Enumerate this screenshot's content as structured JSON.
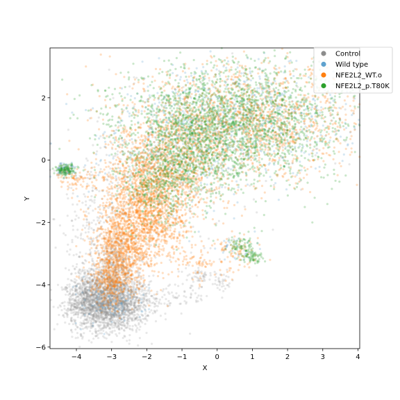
{
  "chart_data": {
    "type": "scatter",
    "title": "",
    "xlabel": "X",
    "ylabel": "Y",
    "xlim": [
      -4.75,
      4.05
    ],
    "ylim": [
      -6.05,
      3.6
    ],
    "xticks": [
      -4,
      -3,
      -2,
      -1,
      0,
      1,
      2,
      3,
      4
    ],
    "yticks": [
      -6,
      -4,
      -2,
      0,
      2
    ],
    "grid": false,
    "legend_position": "top-right",
    "series": [
      {
        "name": "Control",
        "color": "#8c8c8c",
        "opacity": 0.2,
        "clusters": [
          {
            "cx": -3.0,
            "cy": -4.6,
            "sx": 0.55,
            "sy": 0.45,
            "n": 1800
          },
          {
            "cx": -3.6,
            "cy": -4.4,
            "sx": 0.35,
            "sy": 0.5,
            "n": 600
          },
          {
            "cx": -2.9,
            "cy": -3.4,
            "sx": 0.3,
            "sy": 0.5,
            "n": 350
          },
          {
            "cx": -3.5,
            "cy": -2.8,
            "sx": 0.5,
            "sy": 1.2,
            "n": 250
          },
          {
            "cx": -1.2,
            "cy": -4.4,
            "sx": 0.5,
            "sy": 0.2,
            "n": 70
          },
          {
            "cx": -0.5,
            "cy": -3.7,
            "sx": 0.2,
            "sy": 0.1,
            "n": 40
          },
          {
            "cx": 0.1,
            "cy": -3.9,
            "sx": 0.2,
            "sy": 0.15,
            "n": 40
          },
          {
            "cx": -4.4,
            "cy": -0.3,
            "sx": 0.15,
            "sy": 0.1,
            "n": 40
          },
          {
            "cx": -2.0,
            "cy": -1.0,
            "sx": 1.2,
            "sy": 1.3,
            "n": 250
          },
          {
            "cx": 0.5,
            "cy": 1.0,
            "sx": 1.6,
            "sy": 1.0,
            "n": 150
          }
        ]
      },
      {
        "name": "Wild type",
        "color": "#5fa2ce",
        "opacity": 0.25,
        "clusters": [
          {
            "cx": 0.8,
            "cy": 1.3,
            "sx": 1.6,
            "sy": 0.9,
            "n": 600
          },
          {
            "cx": -1.5,
            "cy": 0.2,
            "sx": 1.1,
            "sy": 1.0,
            "n": 250
          },
          {
            "cx": -4.3,
            "cy": -0.3,
            "sx": 0.15,
            "sy": 0.1,
            "n": 60
          },
          {
            "cx": 0.6,
            "cy": -2.9,
            "sx": 0.25,
            "sy": 0.2,
            "n": 30
          },
          {
            "cx": -3.0,
            "cy": -4.5,
            "sx": 0.5,
            "sy": 0.4,
            "n": 120
          }
        ]
      },
      {
        "name": "NFE2L2_WT.o",
        "color": "#ff7f0e",
        "opacity": 0.25,
        "clusters": [
          {
            "cx": -2.0,
            "cy": -1.6,
            "sx": 0.6,
            "sy": 0.9,
            "n": 1500
          },
          {
            "cx": -1.4,
            "cy": -0.1,
            "sx": 0.8,
            "sy": 0.8,
            "n": 800
          },
          {
            "cx": -2.7,
            "cy": -2.8,
            "sx": 0.4,
            "sy": 0.6,
            "n": 700
          },
          {
            "cx": -3.0,
            "cy": -3.9,
            "sx": 0.3,
            "sy": 0.4,
            "n": 350
          },
          {
            "cx": 0.8,
            "cy": 1.2,
            "sx": 1.6,
            "sy": 0.9,
            "n": 1500
          },
          {
            "cx": -4.0,
            "cy": -0.6,
            "sx": 0.3,
            "sy": 0.2,
            "n": 80
          },
          {
            "cx": 0.6,
            "cy": -3.0,
            "sx": 0.3,
            "sy": 0.3,
            "n": 80
          },
          {
            "cx": -0.5,
            "cy": -3.3,
            "sx": 0.3,
            "sy": 0.3,
            "n": 60
          }
        ]
      },
      {
        "name": "NFE2L2_p.T80K",
        "color": "#2ca02c",
        "opacity": 0.25,
        "clusters": [
          {
            "cx": 0.6,
            "cy": 1.3,
            "sx": 1.6,
            "sy": 0.9,
            "n": 2000
          },
          {
            "cx": -0.8,
            "cy": 0.2,
            "sx": 0.9,
            "sy": 0.9,
            "n": 800
          },
          {
            "cx": -1.6,
            "cy": -0.9,
            "sx": 0.5,
            "sy": 0.6,
            "n": 300
          },
          {
            "cx": -4.3,
            "cy": -0.3,
            "sx": 0.15,
            "sy": 0.1,
            "n": 120
          },
          {
            "cx": 0.7,
            "cy": -2.8,
            "sx": 0.2,
            "sy": 0.2,
            "n": 80
          },
          {
            "cx": 1.0,
            "cy": -3.1,
            "sx": 0.15,
            "sy": 0.1,
            "n": 60
          }
        ]
      }
    ]
  }
}
